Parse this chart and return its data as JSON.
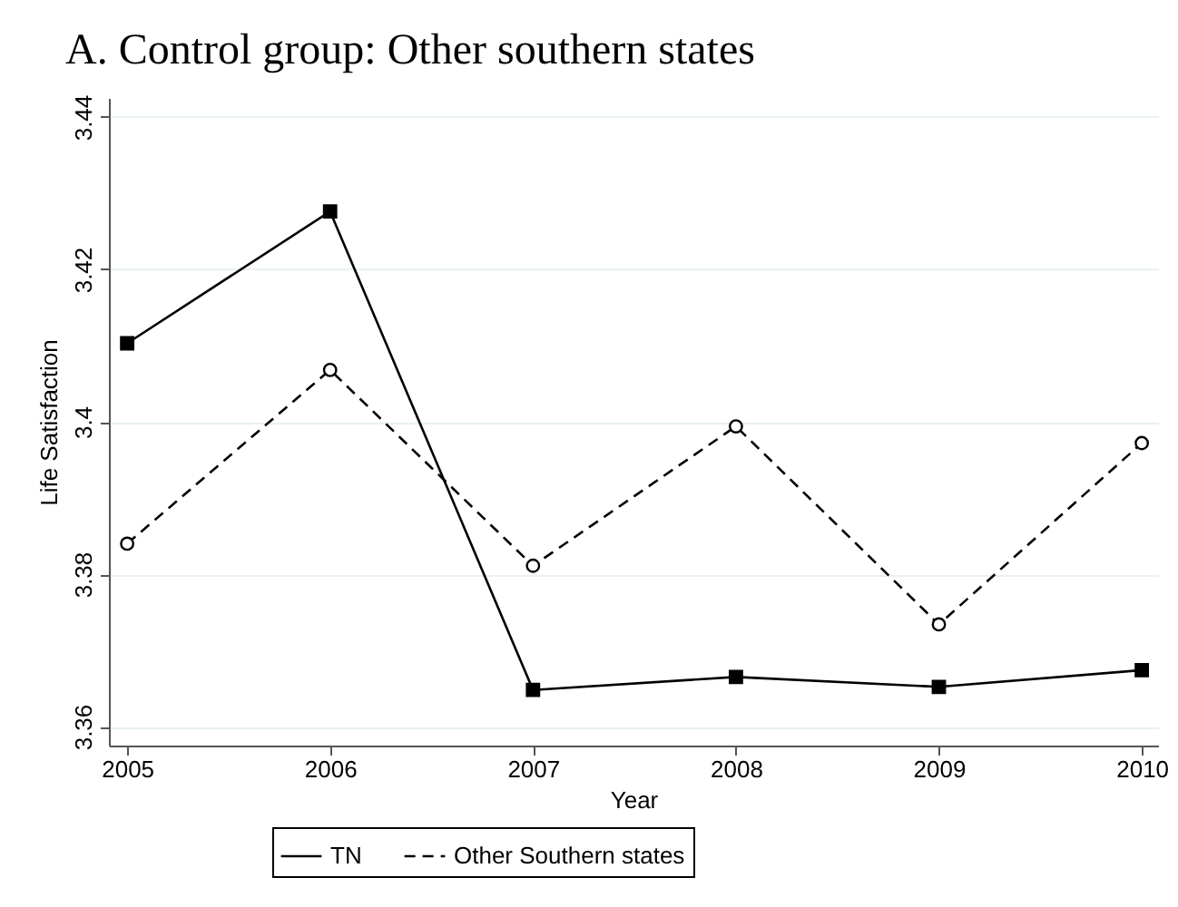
{
  "chart_data": {
    "type": "line",
    "title": "A. Control group: Other southern states",
    "xlabel": "Year",
    "ylabel": "Life Satisfaction",
    "x": [
      2005,
      2006,
      2007,
      2008,
      2009,
      2010
    ],
    "series": [
      {
        "name": "TN",
        "color": "#000000",
        "marker": "square",
        "line_style": "solid",
        "values": [
          3.4103,
          3.4276,
          3.3648,
          3.3665,
          3.3652,
          3.3674
        ]
      },
      {
        "name": "Other Southern states",
        "color": "#000000",
        "marker": "circle",
        "line_style": "dashed",
        "values": [
          3.384,
          3.4068,
          3.3811,
          3.3994,
          3.3734,
          3.3972
        ]
      }
    ],
    "xlim": [
      2004.91,
      2010.08
    ],
    "xticks": [
      2005,
      2006,
      2007,
      2008,
      2009,
      2010
    ],
    "ylim": [
      3.3575,
      3.4425
    ],
    "yticks": [
      3.36,
      3.38,
      3.4,
      3.42,
      3.44
    ],
    "grid": "y",
    "legend": "bottom"
  }
}
